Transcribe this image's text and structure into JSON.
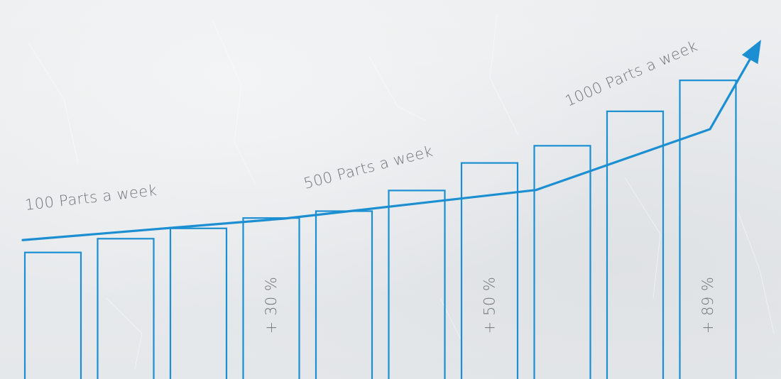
{
  "colors": {
    "accent": "#1b8fd2",
    "label": "#707579",
    "background": "#e9ebed"
  },
  "chart_data": {
    "type": "bar",
    "categories": [
      "",
      "",
      "",
      "",
      "",
      "",
      "",
      "",
      "",
      ""
    ],
    "values": [
      38,
      42,
      45,
      48,
      50,
      56,
      64,
      69,
      79,
      88
    ],
    "ylim": [
      0,
      100
    ],
    "grid": false,
    "legend": "none",
    "bar_labels": [
      {
        "index": 3,
        "text": "+ 30 %"
      },
      {
        "index": 6,
        "text": "+ 50 %"
      },
      {
        "index": 9,
        "text": "+ 89 %"
      }
    ],
    "trend_line": {
      "values": [
        44,
        50,
        58,
        75,
        100
      ],
      "arrow": true
    },
    "annotations": [
      {
        "text": "100 Parts a week"
      },
      {
        "text": "500 Parts a week"
      },
      {
        "text": "1000 Parts a week"
      }
    ]
  }
}
